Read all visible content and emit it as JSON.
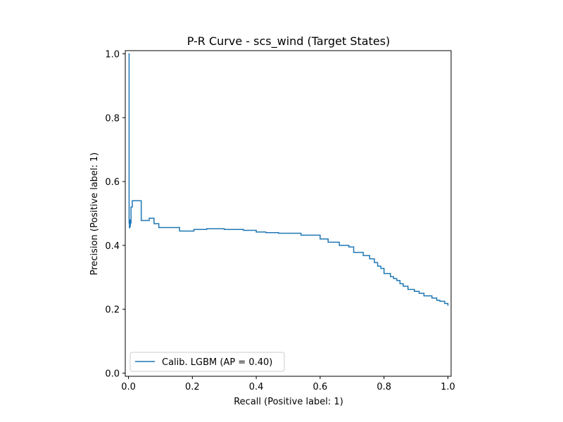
{
  "chart_data": {
    "type": "line",
    "title": "P-R Curve - scs_wind (Target States)",
    "xlabel": "Recall (Positive label: 1)",
    "ylabel": "Precision (Positive label: 1)",
    "xlim": [
      -0.01,
      1.01
    ],
    "ylim": [
      -0.01,
      1.01
    ],
    "xticks": [
      "0.0",
      "0.2",
      "0.4",
      "0.6",
      "0.8",
      "1.0"
    ],
    "yticks": [
      "0.0",
      "0.2",
      "0.4",
      "0.6",
      "0.8",
      "1.0"
    ],
    "grid": false,
    "legend_position": "lower-left",
    "series": [
      {
        "name": "Calib. LGBM (AP = 0.40)",
        "color": "#1f77b4",
        "drawstyle": "steps-post",
        "x": [
          0.0,
          0.002,
          0.003,
          0.004,
          0.005,
          0.006,
          0.008,
          0.012,
          0.02,
          0.04,
          0.065,
          0.08,
          0.095,
          0.16,
          0.205,
          0.245,
          0.3,
          0.36,
          0.4,
          0.43,
          0.47,
          0.54,
          0.6,
          0.625,
          0.66,
          0.69,
          0.705,
          0.735,
          0.755,
          0.77,
          0.78,
          0.79,
          0.8,
          0.82,
          0.83,
          0.84,
          0.85,
          0.86,
          0.875,
          0.895,
          0.91,
          0.925,
          0.95,
          0.965,
          0.975,
          0.99,
          1.0
        ],
        "y": [
          1.0,
          0.47,
          0.455,
          0.48,
          0.46,
          0.47,
          0.52,
          0.54,
          0.54,
          0.478,
          0.485,
          0.468,
          0.456,
          0.445,
          0.45,
          0.452,
          0.45,
          0.447,
          0.442,
          0.44,
          0.438,
          0.432,
          0.42,
          0.41,
          0.4,
          0.395,
          0.378,
          0.368,
          0.358,
          0.346,
          0.335,
          0.328,
          0.312,
          0.302,
          0.296,
          0.29,
          0.28,
          0.272,
          0.262,
          0.256,
          0.25,
          0.242,
          0.235,
          0.228,
          0.225,
          0.218,
          0.211
        ]
      }
    ]
  }
}
